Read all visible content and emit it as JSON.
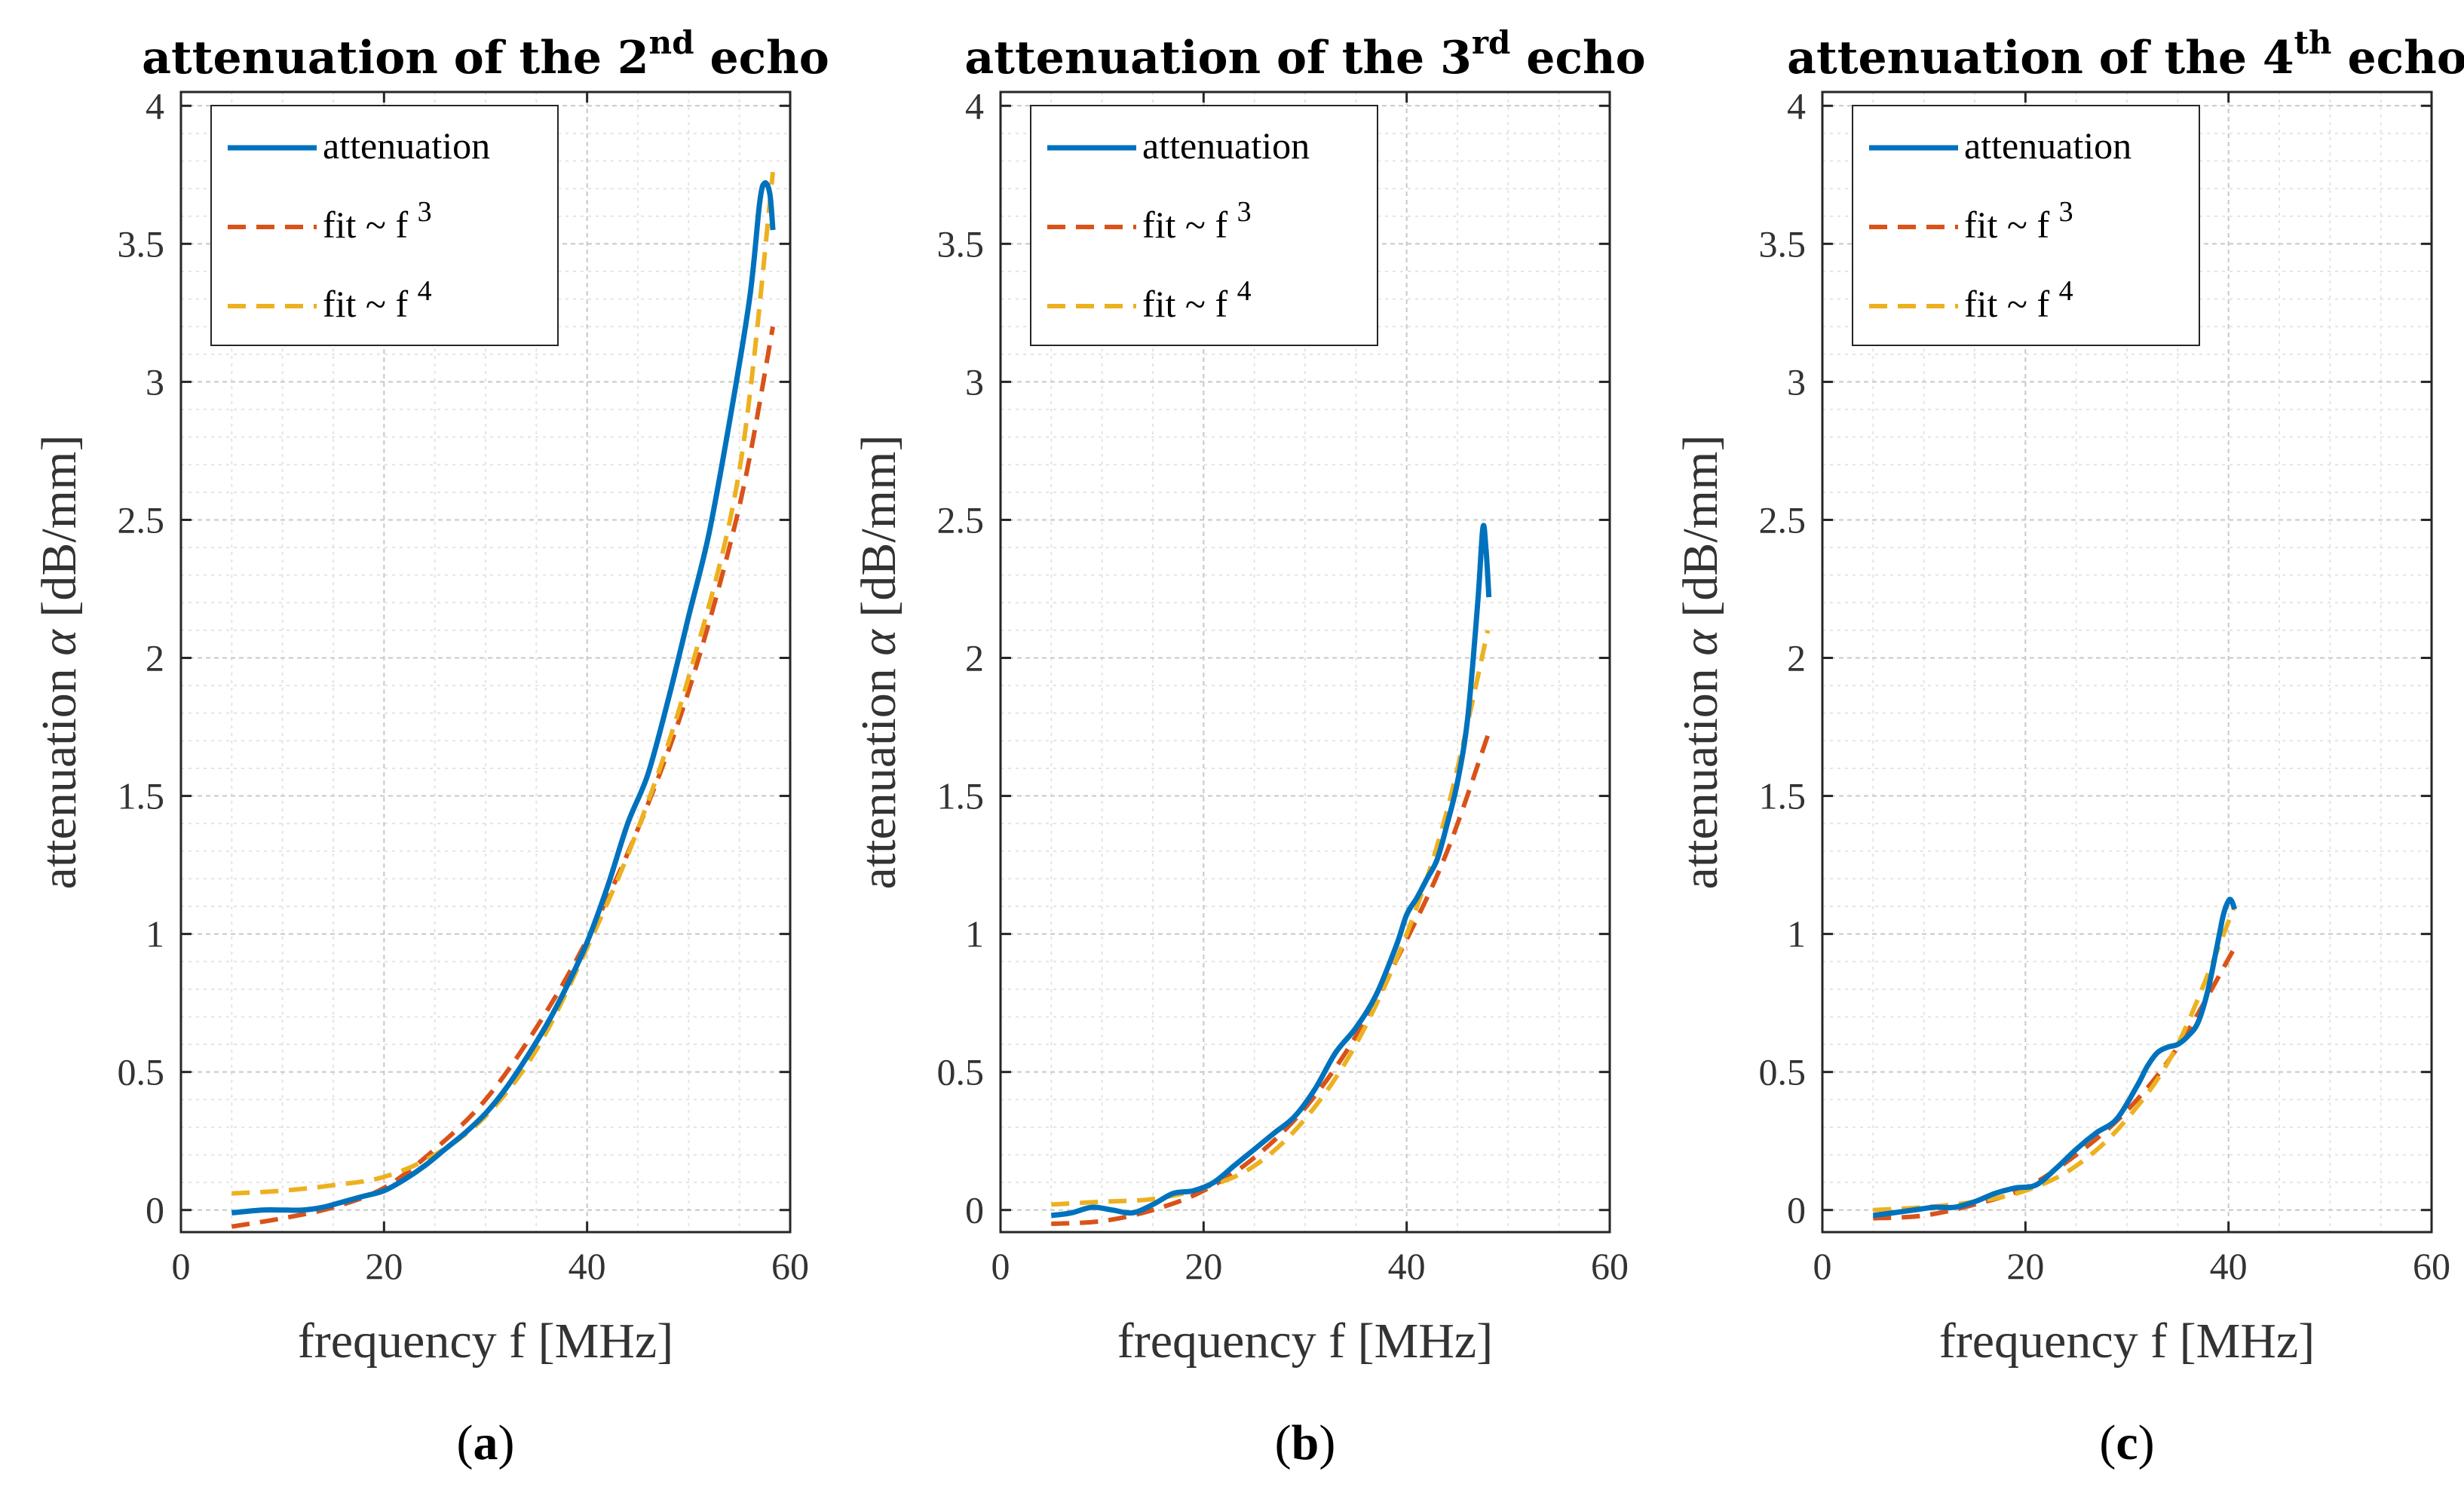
{
  "colors": {
    "attenuation": "#0072BD",
    "fit3": "#D95319",
    "fit4": "#EDB120",
    "grid_major": "#c8c8c8",
    "grid_minor": "#e4e4e4",
    "axis": "#262626"
  },
  "chart_data": [
    {
      "type": "line",
      "title": {
        "prefix": "attenuation of the 2",
        "sup": "nd",
        "suffix": " echo"
      },
      "panel_label": {
        "open": "(",
        "letter": "a",
        "close": ")"
      },
      "xlabel": "frequency f [MHz]",
      "ylabel": {
        "prefix": "attenuation ",
        "symbol": "α",
        "suffix": " [dB/mm]"
      },
      "xlim": [
        0,
        60
      ],
      "ylim": [
        -0.08,
        4.05
      ],
      "xticks": [
        "0",
        "20",
        "40",
        "60"
      ],
      "yticks": [
        "0",
        "0.5",
        "1",
        "1.5",
        "2",
        "2.5",
        "3",
        "3.5",
        "4"
      ],
      "grid": true,
      "legend_position": "top-left",
      "series": [
        {
          "name": "attenuation",
          "style": "solid",
          "x": [
            5,
            8,
            10,
            12,
            14,
            16,
            18,
            20,
            22,
            24,
            26,
            28,
            30,
            32,
            34,
            36,
            38,
            40,
            42,
            44,
            46,
            48,
            50,
            52,
            54,
            56,
            57,
            57.5,
            58,
            58.3
          ],
          "y": [
            -0.01,
            0.0,
            0.0,
            0.0,
            0.01,
            0.03,
            0.05,
            0.07,
            0.11,
            0.16,
            0.22,
            0.28,
            0.35,
            0.44,
            0.55,
            0.67,
            0.81,
            0.97,
            1.17,
            1.4,
            1.58,
            1.85,
            2.15,
            2.45,
            2.85,
            3.3,
            3.65,
            3.72,
            3.68,
            3.55
          ]
        },
        {
          "name": "fit ~ f 3",
          "label_text": "fit ~ f",
          "label_sup": "3",
          "style": "dashed",
          "x": [
            5,
            10,
            15,
            20,
            25,
            30,
            35,
            40,
            45,
            50,
            55,
            58.3
          ],
          "y": [
            -0.06,
            -0.03,
            0.01,
            0.08,
            0.22,
            0.4,
            0.66,
            0.98,
            1.38,
            1.88,
            2.55,
            3.2
          ]
        },
        {
          "name": "fit ~ f 4",
          "label_text": "fit ~ f",
          "label_sup": "4",
          "style": "dashed",
          "x": [
            5,
            10,
            15,
            20,
            25,
            30,
            35,
            40,
            45,
            50,
            55,
            58.3
          ],
          "y": [
            0.06,
            0.07,
            0.09,
            0.12,
            0.2,
            0.34,
            0.58,
            0.95,
            1.38,
            1.93,
            2.68,
            3.76
          ]
        }
      ]
    },
    {
      "type": "line",
      "title": {
        "prefix": "attenuation of the 3",
        "sup": "rd",
        "suffix": " echo"
      },
      "panel_label": {
        "open": "(",
        "letter": "b",
        "close": ")"
      },
      "xlabel": "frequency f [MHz]",
      "ylabel": {
        "prefix": "attenuation ",
        "symbol": "α",
        "suffix": " [dB/mm]"
      },
      "xlim": [
        0,
        60
      ],
      "ylim": [
        -0.08,
        4.05
      ],
      "xticks": [
        "0",
        "20",
        "40",
        "60"
      ],
      "yticks": [
        "0",
        "0.5",
        "1",
        "1.5",
        "2",
        "2.5",
        "3",
        "3.5",
        "4"
      ],
      "grid": true,
      "legend_position": "top-left",
      "series": [
        {
          "name": "attenuation",
          "style": "solid",
          "x": [
            5,
            7,
            9,
            11,
            13,
            15,
            17,
            19,
            21,
            23,
            25,
            27,
            29,
            31,
            33,
            35,
            37,
            39,
            40,
            41,
            42,
            43,
            44,
            45,
            46,
            47,
            47.5,
            47.8,
            48.1
          ],
          "y": [
            -0.02,
            -0.01,
            0.01,
            0.0,
            -0.01,
            0.02,
            0.06,
            0.07,
            0.1,
            0.16,
            0.22,
            0.28,
            0.34,
            0.44,
            0.57,
            0.66,
            0.78,
            0.96,
            1.07,
            1.13,
            1.2,
            1.27,
            1.4,
            1.55,
            1.78,
            2.2,
            2.47,
            2.4,
            2.22
          ]
        },
        {
          "name": "fit ~ f 3",
          "label_text": "fit ~ f",
          "label_sup": "3",
          "style": "dashed",
          "x": [
            5,
            10,
            15,
            20,
            25,
            30,
            35,
            40,
            44,
            48
          ],
          "y": [
            -0.05,
            -0.04,
            0.0,
            0.07,
            0.19,
            0.37,
            0.63,
            0.98,
            1.3,
            1.72
          ]
        },
        {
          "name": "fit ~ f 4",
          "label_text": "fit ~ f",
          "label_sup": "4",
          "style": "dashed",
          "x": [
            5,
            10,
            15,
            20,
            25,
            30,
            35,
            40,
            44,
            48
          ],
          "y": [
            0.02,
            0.03,
            0.04,
            0.08,
            0.16,
            0.33,
            0.6,
            1.0,
            1.45,
            2.1
          ]
        }
      ]
    },
    {
      "type": "line",
      "title": {
        "prefix": "attenuation of the 4",
        "sup": "th",
        "suffix": " echo"
      },
      "panel_label": {
        "open": "(",
        "letter": "c",
        "close": ")"
      },
      "xlabel": "frequency f [MHz]",
      "ylabel": {
        "prefix": "attenuation ",
        "symbol": "α",
        "suffix": " [dB/mm]"
      },
      "xlim": [
        0,
        60
      ],
      "ylim": [
        -0.08,
        4.05
      ],
      "xticks": [
        "0",
        "20",
        "40",
        "60"
      ],
      "yticks": [
        "0",
        "0.5",
        "1",
        "1.5",
        "2",
        "2.5",
        "3",
        "3.5",
        "4"
      ],
      "grid": true,
      "legend_position": "top-left",
      "series": [
        {
          "name": "attenuation",
          "style": "solid",
          "x": [
            5,
            7,
            9,
            11,
            13,
            15,
            17,
            19,
            21,
            23,
            25,
            27,
            29,
            31,
            32,
            33,
            34,
            35,
            36,
            37,
            38,
            39,
            39.5,
            40,
            40.3,
            40.6
          ],
          "y": [
            -0.02,
            -0.01,
            0.0,
            0.01,
            0.01,
            0.03,
            0.06,
            0.08,
            0.09,
            0.15,
            0.22,
            0.28,
            0.33,
            0.45,
            0.52,
            0.57,
            0.59,
            0.6,
            0.63,
            0.68,
            0.8,
            0.98,
            1.07,
            1.12,
            1.12,
            1.09
          ]
        },
        {
          "name": "fit ~ f 3",
          "label_text": "fit ~ f",
          "label_sup": "3",
          "style": "dashed",
          "x": [
            5,
            10,
            15,
            20,
            25,
            30,
            35,
            40.6
          ],
          "y": [
            -0.03,
            -0.02,
            0.02,
            0.08,
            0.2,
            0.36,
            0.59,
            0.95
          ]
        },
        {
          "name": "fit ~ f 4",
          "label_text": "fit ~ f",
          "label_sup": "4",
          "style": "dashed",
          "x": [
            5,
            10,
            15,
            20,
            25,
            30,
            35,
            40.6
          ],
          "y": [
            0.0,
            0.01,
            0.03,
            0.07,
            0.16,
            0.33,
            0.6,
            1.1
          ]
        }
      ]
    }
  ]
}
